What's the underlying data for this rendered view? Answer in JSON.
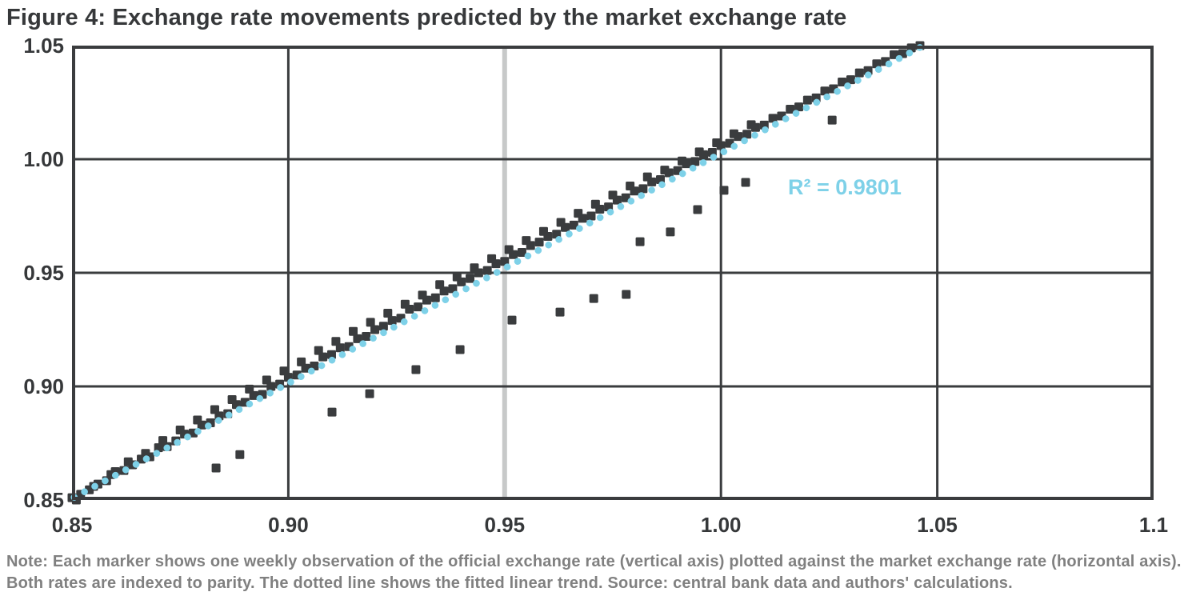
{
  "title": "Figure 4: Exchange rate movements predicted by the market exchange rate",
  "note": {
    "line1": "Note: Each marker shows one weekly observation of the official exchange rate (vertical axis) plotted against the market exchange rate (horizontal axis).",
    "line2": "Both rates are indexed to parity. The dotted line shows the fitted linear trend. Source: central bank data and authors' calculations."
  },
  "colors": {
    "ink": "#36383a",
    "marker": "#3a3c3e",
    "grid": "#3a3c3e",
    "accent": "#7ed1e8",
    "reference_line": "#c7c9c9",
    "note_text": "#808080",
    "background": "#ffffff"
  },
  "chart_data": {
    "type": "scatter",
    "title": "Figure 4: Exchange rate movements predicted by the market exchange rate",
    "xlabel": "",
    "ylabel": "",
    "xlim": [
      0.85,
      1.1
    ],
    "ylim": [
      0.85,
      1.05
    ],
    "grid": true,
    "x_ticks": [
      {
        "value": 0.85,
        "label": "0.85"
      },
      {
        "value": 0.9,
        "label": "0.90"
      },
      {
        "value": 0.95,
        "label": "0.95"
      },
      {
        "value": 1.0,
        "label": "1.00"
      },
      {
        "value": 1.05,
        "label": "1.05"
      },
      {
        "value": 1.1,
        "label": "1.1"
      }
    ],
    "y_ticks": [
      {
        "value": 1.05,
        "label": "1.05"
      },
      {
        "value": 1.0,
        "label": "1.00"
      },
      {
        "value": 0.95,
        "label": "0.95"
      },
      {
        "value": 0.9,
        "label": "0.90"
      },
      {
        "value": 0.85,
        "label": "0.85"
      }
    ],
    "highlight_gridline_x": 0.95,
    "legend_position": "inside-right",
    "r2_label": "R² = 0.9801",
    "trend": {
      "x1": 0.8505,
      "y1": 0.8512,
      "x2": 1.0462,
      "y2": 1.0494,
      "style": "dotted"
    },
    "points": [
      [
        0.85,
        0.851
      ],
      [
        0.852,
        0.8525
      ],
      [
        0.854,
        0.8545
      ],
      [
        0.856,
        0.857
      ],
      [
        0.858,
        0.8585
      ],
      [
        0.86,
        0.8625
      ],
      [
        0.862,
        0.863
      ],
      [
        0.864,
        0.8655
      ],
      [
        0.866,
        0.868
      ],
      [
        0.868,
        0.869
      ],
      [
        0.87,
        0.873
      ],
      [
        0.872,
        0.8735
      ],
      [
        0.874,
        0.876
      ],
      [
        0.876,
        0.879
      ],
      [
        0.878,
        0.8795
      ],
      [
        0.88,
        0.883
      ],
      [
        0.882,
        0.884
      ],
      [
        0.884,
        0.887
      ],
      [
        0.886,
        0.888
      ],
      [
        0.888,
        0.892
      ],
      [
        0.89,
        0.893
      ],
      [
        0.892,
        0.896
      ],
      [
        0.894,
        0.8965
      ],
      [
        0.896,
        0.9
      ],
      [
        0.898,
        0.901
      ],
      [
        0.9,
        0.904
      ],
      [
        0.902,
        0.905
      ],
      [
        0.904,
        0.908
      ],
      [
        0.906,
        0.909
      ],
      [
        0.908,
        0.913
      ],
      [
        0.91,
        0.914
      ],
      [
        0.912,
        0.917
      ],
      [
        0.914,
        0.9175
      ],
      [
        0.916,
        0.921
      ],
      [
        0.918,
        0.922
      ],
      [
        0.92,
        0.925
      ],
      [
        0.922,
        0.9265
      ],
      [
        0.924,
        0.929
      ],
      [
        0.926,
        0.93
      ],
      [
        0.928,
        0.934
      ],
      [
        0.93,
        0.935
      ],
      [
        0.932,
        0.938
      ],
      [
        0.934,
        0.939
      ],
      [
        0.936,
        0.942
      ],
      [
        0.938,
        0.943
      ],
      [
        0.94,
        0.946
      ],
      [
        0.942,
        0.9475
      ],
      [
        0.944,
        0.95
      ],
      [
        0.946,
        0.951
      ],
      [
        0.948,
        0.954
      ],
      [
        0.95,
        0.955
      ],
      [
        0.952,
        0.958
      ],
      [
        0.954,
        0.959
      ],
      [
        0.956,
        0.962
      ],
      [
        0.958,
        0.9635
      ],
      [
        0.96,
        0.966
      ],
      [
        0.962,
        0.967
      ],
      [
        0.964,
        0.97
      ],
      [
        0.966,
        0.971
      ],
      [
        0.968,
        0.974
      ],
      [
        0.97,
        0.975
      ],
      [
        0.972,
        0.978
      ],
      [
        0.974,
        0.979
      ],
      [
        0.976,
        0.982
      ],
      [
        0.978,
        0.983
      ],
      [
        0.98,
        0.986
      ],
      [
        0.982,
        0.987
      ],
      [
        0.984,
        0.99
      ],
      [
        0.986,
        0.991
      ],
      [
        0.988,
        0.994
      ],
      [
        0.99,
        0.995
      ],
      [
        0.992,
        0.998
      ],
      [
        0.994,
        0.999
      ],
      [
        0.996,
        1.002
      ],
      [
        0.998,
        1.003
      ],
      [
        1.0,
        1.006
      ],
      [
        1.002,
        1.007
      ],
      [
        1.004,
        1.01
      ],
      [
        1.006,
        1.011
      ],
      [
        1.008,
        1.014
      ],
      [
        1.01,
        1.015
      ],
      [
        1.012,
        1.018
      ],
      [
        1.014,
        1.019
      ],
      [
        1.016,
        1.022
      ],
      [
        1.018,
        1.023
      ],
      [
        1.02,
        1.026
      ],
      [
        1.022,
        1.027
      ],
      [
        1.024,
        1.03
      ],
      [
        1.026,
        1.031
      ],
      [
        1.028,
        1.034
      ],
      [
        1.03,
        1.035
      ],
      [
        1.032,
        1.038
      ],
      [
        1.034,
        1.039
      ],
      [
        1.036,
        1.042
      ],
      [
        1.038,
        1.043
      ],
      [
        1.04,
        1.046
      ],
      [
        1.042,
        1.0465
      ],
      [
        1.044,
        1.049
      ],
      [
        1.046,
        1.05
      ],
      [
        0.851,
        0.85
      ],
      [
        0.855,
        0.856
      ],
      [
        0.859,
        0.8612
      ],
      [
        0.863,
        0.8668
      ],
      [
        0.867,
        0.8705
      ],
      [
        0.871,
        0.8762
      ],
      [
        0.875,
        0.8808
      ],
      [
        0.879,
        0.8852
      ],
      [
        0.883,
        0.8898
      ],
      [
        0.887,
        0.8942
      ],
      [
        0.891,
        0.8988
      ],
      [
        0.895,
        0.9028
      ],
      [
        0.899,
        0.9068
      ],
      [
        0.903,
        0.9108
      ],
      [
        0.907,
        0.9158
      ],
      [
        0.911,
        0.9198
      ],
      [
        0.915,
        0.9242
      ],
      [
        0.919,
        0.9282
      ],
      [
        0.923,
        0.9322
      ],
      [
        0.927,
        0.9362
      ],
      [
        0.931,
        0.9402
      ],
      [
        0.935,
        0.9448
      ],
      [
        0.939,
        0.9482
      ],
      [
        0.943,
        0.9522
      ],
      [
        0.947,
        0.9562
      ],
      [
        0.951,
        0.9602
      ],
      [
        0.955,
        0.9642
      ],
      [
        0.959,
        0.9682
      ],
      [
        0.963,
        0.9722
      ],
      [
        0.967,
        0.9762
      ],
      [
        0.971,
        0.9802
      ],
      [
        0.975,
        0.9842
      ],
      [
        0.979,
        0.9882
      ],
      [
        0.983,
        0.9922
      ],
      [
        0.987,
        0.9952
      ],
      [
        0.991,
        0.9992
      ],
      [
        0.995,
        1.0032
      ],
      [
        0.999,
        1.0072
      ],
      [
        1.003,
        1.0112
      ],
      [
        1.007,
        1.0152
      ]
    ],
    "outliers": [
      [
        0.8833,
        0.8641
      ],
      [
        0.8888,
        0.87
      ],
      [
        0.9101,
        0.8887
      ],
      [
        0.9188,
        0.8968
      ],
      [
        0.9295,
        0.9074
      ],
      [
        0.9397,
        0.9162
      ],
      [
        0.9517,
        0.9292
      ],
      [
        0.9628,
        0.9327
      ],
      [
        0.9706,
        0.9387
      ],
      [
        0.9781,
        0.9405
      ],
      [
        0.9813,
        0.9637
      ],
      [
        0.9883,
        0.968
      ],
      [
        0.9946,
        0.9778
      ],
      [
        1.0007,
        0.9863
      ],
      [
        1.0057,
        0.9898
      ],
      [
        1.0257,
        1.0172
      ]
    ]
  }
}
